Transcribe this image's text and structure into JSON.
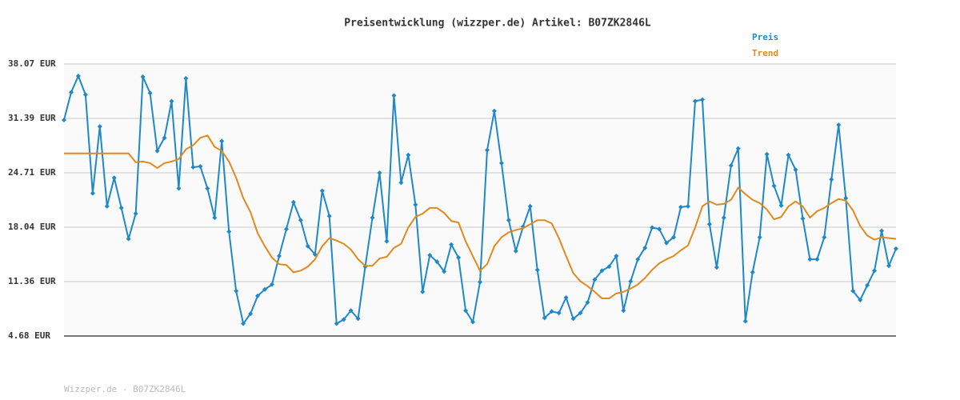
{
  "chart_data": {
    "type": "line",
    "title": "Preisentwicklung (wizzper.de) Artikel: B07ZK2846L",
    "footer": "Wizzper.de - B07ZK2846L",
    "legend": "top-right",
    "grid": true,
    "ylim": [
      4.68,
      38.07
    ],
    "yticks": [
      {
        "value": 4.68,
        "label": "4.68 EUR"
      },
      {
        "value": 11.36,
        "label": "11.36 EUR"
      },
      {
        "value": 18.04,
        "label": "18.04 EUR"
      },
      {
        "value": 24.71,
        "label": "24.71 EUR"
      },
      {
        "value": 31.39,
        "label": "31.39 EUR"
      },
      {
        "value": 38.07,
        "label": "38.07 EUR"
      }
    ],
    "series": [
      {
        "name": "Preis",
        "color": "#1f88c8",
        "markers": true,
        "values": [
          31.2,
          34.6,
          36.6,
          34.3,
          22.2,
          30.4,
          20.6,
          24.1,
          20.4,
          16.6,
          19.7,
          36.5,
          34.5,
          27.4,
          29.0,
          33.5,
          22.8,
          36.3,
          25.4,
          25.5,
          22.8,
          19.2,
          28.6,
          17.5,
          10.2,
          6.2,
          7.4,
          9.6,
          10.4,
          11.0,
          14.5,
          17.8,
          21.1,
          18.9,
          15.7,
          14.7,
          22.5,
          19.4,
          6.2,
          6.7,
          7.8,
          6.8,
          13.2,
          19.2,
          24.7,
          16.3,
          34.2,
          23.5,
          26.9,
          20.8,
          10.1,
          14.6,
          13.8,
          12.6,
          15.9,
          14.3,
          7.8,
          6.4,
          11.3,
          27.5,
          32.3,
          25.9,
          18.9,
          15.1,
          18.1,
          20.6,
          12.8,
          6.9,
          7.7,
          7.5,
          9.4,
          6.8,
          7.5,
          8.8,
          11.6,
          12.7,
          13.2,
          14.5,
          7.8,
          11.4,
          14.1,
          15.5,
          18.0,
          17.8,
          16.1,
          16.8,
          20.5,
          20.6,
          33.5,
          33.7,
          18.4,
          13.1,
          19.2,
          25.6,
          27.7,
          6.5,
          12.5,
          16.8,
          27.0,
          23.1,
          20.7,
          26.9,
          25.1,
          19.1,
          14.1,
          14.1,
          16.8,
          23.9,
          30.6,
          21.6,
          10.2,
          9.1,
          10.9,
          12.7,
          17.6,
          13.3,
          15.4
        ]
      },
      {
        "name": "Trend",
        "color": "#e08a1e",
        "markers": false,
        "values": [
          27.1,
          27.1,
          27.1,
          27.1,
          27.1,
          27.1,
          27.1,
          27.1,
          27.1,
          27.1,
          26.0,
          26.1,
          25.9,
          25.3,
          25.9,
          26.1,
          26.4,
          27.6,
          28.1,
          29.0,
          29.3,
          27.9,
          27.4,
          26.1,
          24.1,
          21.6,
          19.9,
          17.3,
          15.7,
          14.3,
          13.5,
          13.4,
          12.5,
          12.7,
          13.2,
          14.1,
          15.7,
          16.7,
          16.4,
          16.0,
          15.3,
          14.1,
          13.3,
          13.3,
          14.2,
          14.4,
          15.5,
          16.0,
          18.0,
          19.3,
          19.7,
          20.4,
          20.4,
          19.8,
          18.8,
          18.6,
          16.3,
          14.5,
          12.7,
          13.5,
          15.7,
          16.8,
          17.4,
          17.7,
          17.9,
          18.4,
          18.9,
          18.9,
          18.5,
          16.7,
          14.5,
          12.4,
          11.4,
          10.8,
          10.1,
          9.3,
          9.3,
          9.9,
          10.1,
          10.5,
          11.0,
          11.8,
          12.8,
          13.6,
          14.1,
          14.5,
          15.2,
          15.8,
          18.0,
          20.6,
          21.2,
          20.8,
          20.9,
          21.4,
          22.9,
          22.1,
          21.4,
          21.0,
          20.2,
          19.0,
          19.3,
          20.6,
          21.2,
          20.6,
          19.2,
          20.0,
          20.4,
          21.0,
          21.5,
          21.3,
          20.1,
          18.2,
          17.0,
          16.5,
          16.8,
          16.7,
          16.6
        ]
      }
    ]
  }
}
